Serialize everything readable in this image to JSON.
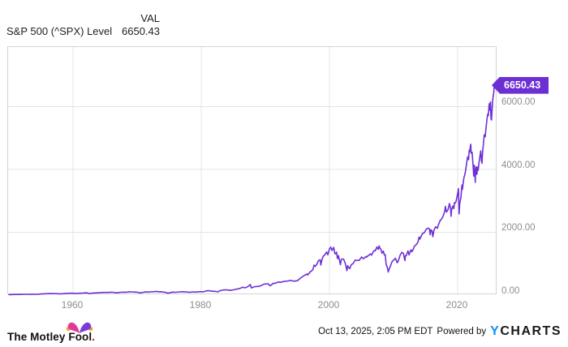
{
  "header": {
    "series_label": "S&P 500 (^SPX) Level",
    "value_column_header": "VAL",
    "value": "6650.43"
  },
  "badge": {
    "label": "6650.43"
  },
  "footer": {
    "brand_text": "The Motley Fool",
    "brand_period": ".",
    "timestamp": "Oct 13, 2025, 2:05 PM EDT",
    "powered_by": "Powered by",
    "ycharts_y": "Y",
    "ycharts_rest": "CHARTS"
  },
  "colors": {
    "line": "#6e30d6",
    "badge": "#6b2fd3",
    "grid": "#e4e4e4",
    "plot_border": "#d4d4d4",
    "tick_text": "#8e8e8e",
    "ycharts_blue": "#0d8ff2",
    "fool_pink": "#e0399a",
    "fool_purple": "#7b3bdc",
    "fool_gold": "#f9a01b",
    "fool_period": "#cf0a2c"
  },
  "chart_data": {
    "type": "line",
    "title": "S&P 500 (^SPX) Level",
    "xlabel": "",
    "ylabel": "",
    "grid": true,
    "legend_position": "none",
    "x_domain": [
      1949.87,
      2026.2
    ],
    "y_domain": [
      0,
      7890
    ],
    "x_ticks": [
      {
        "v": 1960,
        "label": "1960"
      },
      {
        "v": 1980,
        "label": "1980"
      },
      {
        "v": 2000,
        "label": "2000"
      },
      {
        "v": 2020,
        "label": "2020"
      }
    ],
    "y_ticks": [
      {
        "v": 0,
        "label": "0.00"
      },
      {
        "v": 2000,
        "label": "2000.00"
      },
      {
        "v": 4000,
        "label": "4000.00"
      },
      {
        "v": 6000,
        "label": "6000.00"
      }
    ],
    "series": [
      {
        "name": "S&P 500 (^SPX) Level",
        "color": "#6e30d6",
        "last_value": 6650.43,
        "points": [
          [
            1950,
            16.7
          ],
          [
            1950.5,
            17.7
          ],
          [
            1951,
            20.4
          ],
          [
            1951.5,
            21.6
          ],
          [
            1952,
            23.8
          ],
          [
            1952.5,
            24.5
          ],
          [
            1953,
            26.6
          ],
          [
            1953.6,
            23.5
          ],
          [
            1954,
            24.8
          ],
          [
            1954.5,
            29.2
          ],
          [
            1955,
            36.0
          ],
          [
            1955.5,
            41.0
          ],
          [
            1956,
            45.5
          ],
          [
            1956.6,
            48.8
          ],
          [
            1957,
            46.7
          ],
          [
            1957.5,
            47.4
          ],
          [
            1957.8,
            40.3
          ],
          [
            1958,
            40.0
          ],
          [
            1958.5,
            45.3
          ],
          [
            1959,
            55.2
          ],
          [
            1959.6,
            59.7
          ],
          [
            1960,
            59.9
          ],
          [
            1960.3,
            55.3
          ],
          [
            1960.8,
            55.5
          ],
          [
            1961,
            58.1
          ],
          [
            1961.5,
            64.6
          ],
          [
            1962,
            71.6
          ],
          [
            1962.2,
            69.6
          ],
          [
            1962.5,
            52.3
          ],
          [
            1962.8,
            56.5
          ],
          [
            1963,
            63.1
          ],
          [
            1963.5,
            69.1
          ],
          [
            1964,
            75.0
          ],
          [
            1964.5,
            81.7
          ],
          [
            1965,
            84.8
          ],
          [
            1965.5,
            84.1
          ],
          [
            1966,
            92.4
          ],
          [
            1966.2,
            91.2
          ],
          [
            1966.75,
            73.2
          ],
          [
            1967,
            80.3
          ],
          [
            1967.5,
            90.6
          ],
          [
            1968,
            96.5
          ],
          [
            1968.3,
            90.2
          ],
          [
            1968.9,
            108.4
          ],
          [
            1969,
            103.9
          ],
          [
            1969.5,
            97.7
          ],
          [
            1970,
            92.1
          ],
          [
            1970.5,
            69.3
          ],
          [
            1970.9,
            87.2
          ],
          [
            1971,
            92.2
          ],
          [
            1971.35,
            100.3
          ],
          [
            1971.8,
            94.2
          ],
          [
            1972,
            102.1
          ],
          [
            1972.5,
            107.1
          ],
          [
            1973,
            118.1
          ],
          [
            1973.4,
            106.0
          ],
          [
            1973.8,
            108.3
          ],
          [
            1974,
            97.6
          ],
          [
            1974.5,
            86.0
          ],
          [
            1974.75,
            62.3
          ],
          [
            1975,
            68.6
          ],
          [
            1975.5,
            95.2
          ],
          [
            1976,
            90.2
          ],
          [
            1976.7,
            104.1
          ],
          [
            1977,
            107.5
          ],
          [
            1977.5,
            100.5
          ],
          [
            1978,
            95.1
          ],
          [
            1978.2,
            87.0
          ],
          [
            1978.7,
            103.9
          ],
          [
            1979,
            96.1
          ],
          [
            1979.75,
            109.3
          ],
          [
            1980,
            107.9
          ],
          [
            1980.25,
            102.1
          ],
          [
            1980.9,
            140.5
          ],
          [
            1981,
            135.8
          ],
          [
            1981.3,
            136.0
          ],
          [
            1981.75,
            121.9
          ],
          [
            1982,
            122.6
          ],
          [
            1982.6,
            102.4
          ],
          [
            1982.9,
            138.5
          ],
          [
            1983,
            140.6
          ],
          [
            1983.5,
            168.1
          ],
          [
            1984,
            164.9
          ],
          [
            1984.55,
            150.6
          ],
          [
            1985,
            167.2
          ],
          [
            1985.5,
            191.9
          ],
          [
            1986,
            211.3
          ],
          [
            1986.5,
            252.9
          ],
          [
            1986.75,
            231.3
          ],
          [
            1987,
            242.2
          ],
          [
            1987.4,
            288.4
          ],
          [
            1987.63,
            336.8
          ],
          [
            1987.85,
            223.9
          ],
          [
            1988,
            247.1
          ],
          [
            1988.5,
            273.5
          ],
          [
            1989,
            277.7
          ],
          [
            1989.5,
            318.0
          ],
          [
            1989.75,
            349.2
          ],
          [
            1990,
            353.4
          ],
          [
            1990.4,
            361.2
          ],
          [
            1990.75,
            295.5
          ],
          [
            1991,
            330.2
          ],
          [
            1991.2,
            375.2
          ],
          [
            1991.5,
            371.2
          ],
          [
            1992,
            417.1
          ],
          [
            1992.3,
            403.7
          ],
          [
            1992.8,
            431.4
          ],
          [
            1993,
            435.7
          ],
          [
            1993.5,
            450.5
          ],
          [
            1994,
            466.5
          ],
          [
            1994.25,
            450.9
          ],
          [
            1994.5,
            444.3
          ],
          [
            1995,
            459.3
          ],
          [
            1995.5,
            544.8
          ],
          [
            1996,
            615.9
          ],
          [
            1996.5,
            670.6
          ],
          [
            1996.6,
            639.9
          ],
          [
            1997,
            740.7
          ],
          [
            1997.4,
            801.3
          ],
          [
            1997.6,
            954.3
          ],
          [
            1997.8,
            914.6
          ],
          [
            1998,
            970.4
          ],
          [
            1998.3,
            1101.8
          ],
          [
            1998.55,
            1120.7
          ],
          [
            1998.65,
            957.3
          ],
          [
            1998.8,
            1098.7
          ],
          [
            1999,
            1229.2
          ],
          [
            1999.3,
            1286.4
          ],
          [
            1999.55,
            1372.7
          ],
          [
            1999.75,
            1282.7
          ],
          [
            2000,
            1469.3
          ],
          [
            2000.2,
            1527.5
          ],
          [
            2000.4,
            1420.6
          ],
          [
            2000.65,
            1517.7
          ],
          [
            2000.85,
            1314.9
          ],
          [
            2001,
            1320.3
          ],
          [
            2001.1,
            1366.0
          ],
          [
            2001.25,
            1160.3
          ],
          [
            2001.4,
            1255.8
          ],
          [
            2001.7,
            965.8
          ],
          [
            2001.85,
            1139.4
          ],
          [
            2002,
            1148.1
          ],
          [
            2002.2,
            1147.4
          ],
          [
            2002.5,
            989.8
          ],
          [
            2002.72,
            776.8
          ],
          [
            2002.85,
            936.3
          ],
          [
            2003,
            879.8
          ],
          [
            2003.15,
            841.2
          ],
          [
            2003.4,
            963.6
          ],
          [
            2003.7,
            1008.0
          ],
          [
            2004,
            1111.9
          ],
          [
            2004.25,
            1107.3
          ],
          [
            2004.6,
            1104.2
          ],
          [
            2004.9,
            1173.8
          ],
          [
            2005,
            1211.9
          ],
          [
            2005.3,
            1156.9
          ],
          [
            2005.7,
            1228.8
          ],
          [
            2005.8,
            1207.0
          ],
          [
            2006,
            1248.3
          ],
          [
            2006.4,
            1310.6
          ],
          [
            2006.55,
            1270.2
          ],
          [
            2006.9,
            1400.6
          ],
          [
            2007,
            1418.3
          ],
          [
            2007.15,
            1406.8
          ],
          [
            2007.4,
            1530.6
          ],
          [
            2007.6,
            1455.3
          ],
          [
            2007.75,
            1565.2
          ],
          [
            2007.9,
            1481.1
          ],
          [
            2008,
            1468.4
          ],
          [
            2008.2,
            1330.6
          ],
          [
            2008.4,
            1400.4
          ],
          [
            2008.55,
            1280.0
          ],
          [
            2008.7,
            1282.8
          ],
          [
            2008.85,
            968.8
          ],
          [
            2009,
            903.3
          ],
          [
            2009.17,
            735.1
          ],
          [
            2009.25,
            797.9
          ],
          [
            2009.5,
            919.3
          ],
          [
            2009.75,
            1057.1
          ],
          [
            2010,
            1115.1
          ],
          [
            2010.3,
            1169.4
          ],
          [
            2010.55,
            1030.7
          ],
          [
            2010.65,
            1049.3
          ],
          [
            2010.9,
            1183.3
          ],
          [
            2011,
            1257.6
          ],
          [
            2011.3,
            1363.6
          ],
          [
            2011.55,
            1320.6
          ],
          [
            2011.72,
            1131.4
          ],
          [
            2011.78,
            1099.2
          ],
          [
            2011.85,
            1253.3
          ],
          [
            2012,
            1257.6
          ],
          [
            2012.25,
            1408.5
          ],
          [
            2012.42,
            1278.0
          ],
          [
            2012.7,
            1440.7
          ],
          [
            2012.85,
            1380.6
          ],
          [
            2013,
            1426.2
          ],
          [
            2013.3,
            1569.2
          ],
          [
            2013.55,
            1606.3
          ],
          [
            2013.8,
            1681.6
          ],
          [
            2014,
            1848.4
          ],
          [
            2014.1,
            1782.6
          ],
          [
            2014.5,
            1960.2
          ],
          [
            2014.75,
            1972.3
          ],
          [
            2015,
            2058.9
          ],
          [
            2015.15,
            2104.5
          ],
          [
            2015.4,
            2130.8
          ],
          [
            2015.6,
            2103.8
          ],
          [
            2015.7,
            1920.0
          ],
          [
            2015.85,
            2079.4
          ],
          [
            2016,
            2043.9
          ],
          [
            2016.12,
            1859.0
          ],
          [
            2016.3,
            2059.7
          ],
          [
            2016.55,
            2173.6
          ],
          [
            2016.85,
            2126.4
          ],
          [
            2017,
            2238.8
          ],
          [
            2017.25,
            2362.7
          ],
          [
            2017.5,
            2423.4
          ],
          [
            2017.75,
            2519.4
          ],
          [
            2018,
            2673.6
          ],
          [
            2018.08,
            2823.8
          ],
          [
            2018.18,
            2713.8
          ],
          [
            2018.25,
            2640.9
          ],
          [
            2018.5,
            2718.4
          ],
          [
            2018.72,
            2914.0
          ],
          [
            2018.9,
            2760.2
          ],
          [
            2018.97,
            2506.9
          ],
          [
            2019.05,
            2704.1
          ],
          [
            2019.25,
            2834.4
          ],
          [
            2019.4,
            2752.1
          ],
          [
            2019.5,
            2941.8
          ],
          [
            2019.6,
            2926.5
          ],
          [
            2019.75,
            2976.7
          ],
          [
            2020,
            3230.8
          ],
          [
            2020.13,
            3386.2
          ],
          [
            2020.17,
            2954.2
          ],
          [
            2020.23,
            2584.6
          ],
          [
            2020.33,
            2912.4
          ],
          [
            2020.5,
            3100.3
          ],
          [
            2020.67,
            3500.3
          ],
          [
            2020.75,
            3363.0
          ],
          [
            2020.9,
            3621.6
          ],
          [
            2021,
            3756.1
          ],
          [
            2021.1,
            3811.2
          ],
          [
            2021.25,
            3972.9
          ],
          [
            2021.4,
            4204.1
          ],
          [
            2021.55,
            4395.3
          ],
          [
            2021.7,
            4307.5
          ],
          [
            2021.8,
            4605.4
          ],
          [
            2021.9,
            4567.0
          ],
          [
            2022,
            4766.2
          ],
          [
            2022.05,
            4796.6
          ],
          [
            2022.1,
            4515.6
          ],
          [
            2022.25,
            4545.9
          ],
          [
            2022.4,
            4131.9
          ],
          [
            2022.5,
            3785.4
          ],
          [
            2022.6,
            4130.3
          ],
          [
            2022.67,
            3955.0
          ],
          [
            2022.74,
            3585.6
          ],
          [
            2022.8,
            3872.0
          ],
          [
            2022.9,
            4080.1
          ],
          [
            2023,
            3839.5
          ],
          [
            2023.1,
            4076.6
          ],
          [
            2023.2,
            3970.2
          ],
          [
            2023.3,
            4169.5
          ],
          [
            2023.5,
            4450.4
          ],
          [
            2023.6,
            4589.0
          ],
          [
            2023.7,
            4288.1
          ],
          [
            2023.8,
            4193.8
          ],
          [
            2023.9,
            4567.8
          ],
          [
            2024,
            4769.8
          ],
          [
            2024.15,
            5096.3
          ],
          [
            2024.3,
            5035.7
          ],
          [
            2024.4,
            5277.5
          ],
          [
            2024.5,
            5460.5
          ],
          [
            2024.6,
            5648.4
          ],
          [
            2024.7,
            5762.5
          ],
          [
            2024.78,
            5705.5
          ],
          [
            2024.9,
            6032.4
          ],
          [
            2024.95,
            6090.3
          ],
          [
            2025,
            5881.6
          ],
          [
            2025.1,
            5954.5
          ],
          [
            2025.13,
            6144.2
          ],
          [
            2025.2,
            5611.9
          ],
          [
            2025.28,
            5569.1
          ],
          [
            2025.38,
            5911.7
          ],
          [
            2025.47,
            6205.0
          ],
          [
            2025.56,
            6339.4
          ],
          [
            2025.64,
            6460.3
          ],
          [
            2025.71,
            6688.5
          ],
          [
            2025.78,
            6650.43
          ]
        ]
      }
    ]
  }
}
